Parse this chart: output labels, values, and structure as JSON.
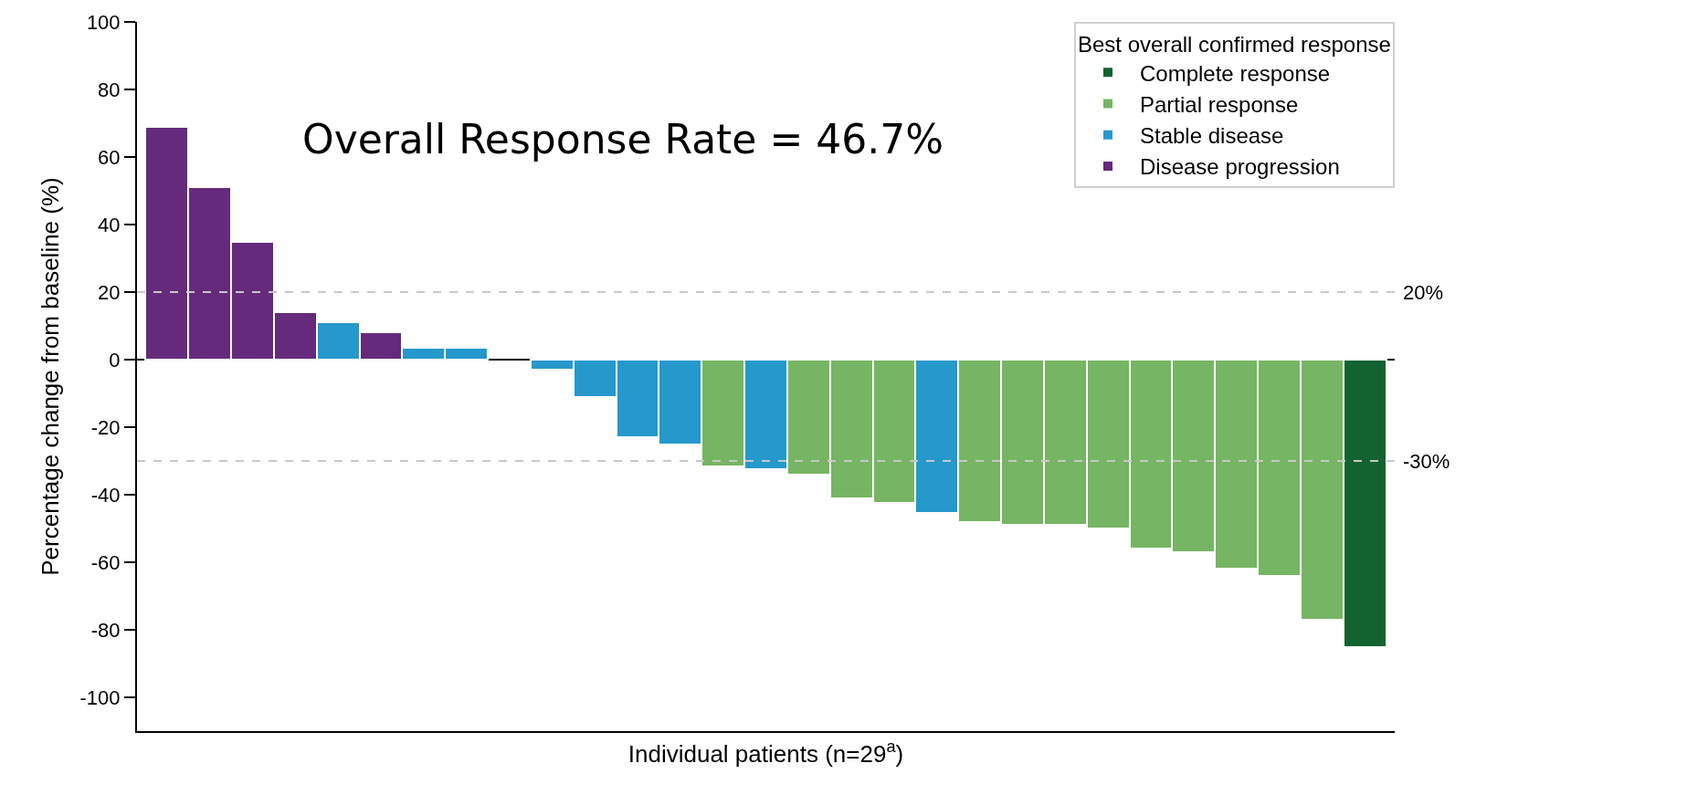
{
  "chart_data": {
    "type": "bar",
    "xlabel": "Individual patients (n=29$^{a}$)",
    "ylabel": "Percentage change from baseline (%)",
    "legend_title": "Best overall confirmed response",
    "annotations": [
      "Overall Response Rate = 46.7%"
    ],
    "categories": [
      null,
      null,
      null,
      null,
      null,
      null,
      null,
      null,
      null,
      null,
      null,
      null,
      null,
      null,
      null,
      null,
      null,
      null,
      null,
      null,
      null,
      null,
      null,
      null,
      null,
      null,
      null,
      null,
      null
    ],
    "series": [
      {
        "name": "Complete response",
        "color": "#136331",
        "values": [
          null,
          null,
          null,
          null,
          null,
          null,
          null,
          null,
          null,
          null,
          null,
          null,
          null,
          null,
          null,
          null,
          null,
          null,
          null,
          null,
          null,
          null,
          null,
          null,
          null,
          null,
          null,
          null,
          -85
        ]
      },
      {
        "name": "Partial response",
        "color": "#76b563",
        "values": [
          null,
          null,
          null,
          null,
          null,
          null,
          null,
          null,
          null,
          null,
          null,
          null,
          null,
          -31.5,
          null,
          -34,
          -41,
          -42.5,
          null,
          -48,
          -49,
          -49,
          -50,
          -56,
          -57,
          -62,
          -64,
          -77,
          null
        ]
      },
      {
        "name": "Stable disease",
        "color": "#2598cc",
        "values": [
          null,
          null,
          null,
          null,
          11,
          null,
          3.5,
          3.5,
          null,
          -3,
          -11,
          -23,
          -25,
          null,
          -32.5,
          null,
          null,
          null,
          -45.5,
          null,
          null,
          null,
          null,
          null,
          null,
          null,
          null,
          null,
          null
        ]
      },
      {
        "name": "Disease progression",
        "color": "#652a7c",
        "values": [
          69,
          51,
          35,
          14,
          null,
          8,
          null,
          null,
          null,
          null,
          null,
          null,
          null,
          null,
          null,
          null,
          null,
          null,
          null,
          null,
          null,
          null,
          null,
          null,
          null,
          null,
          null,
          null,
          null
        ]
      }
    ],
    "ylim": [
      -110,
      100
    ],
    "yticks": [
      -100,
      -80,
      -60,
      -40,
      -20,
      0,
      20,
      40,
      60,
      80,
      100
    ],
    "ref_lines": [
      {
        "axis": "y",
        "value": 20,
        "label": "20%",
        "color": "#c8c8c8",
        "line_style": "dashed"
      },
      {
        "axis": "y",
        "value": -30,
        "label": "-30%",
        "color": "#c8c8c8",
        "line_style": "dashed"
      }
    ],
    "legend": "top right",
    "tick_labels": "y"
  }
}
